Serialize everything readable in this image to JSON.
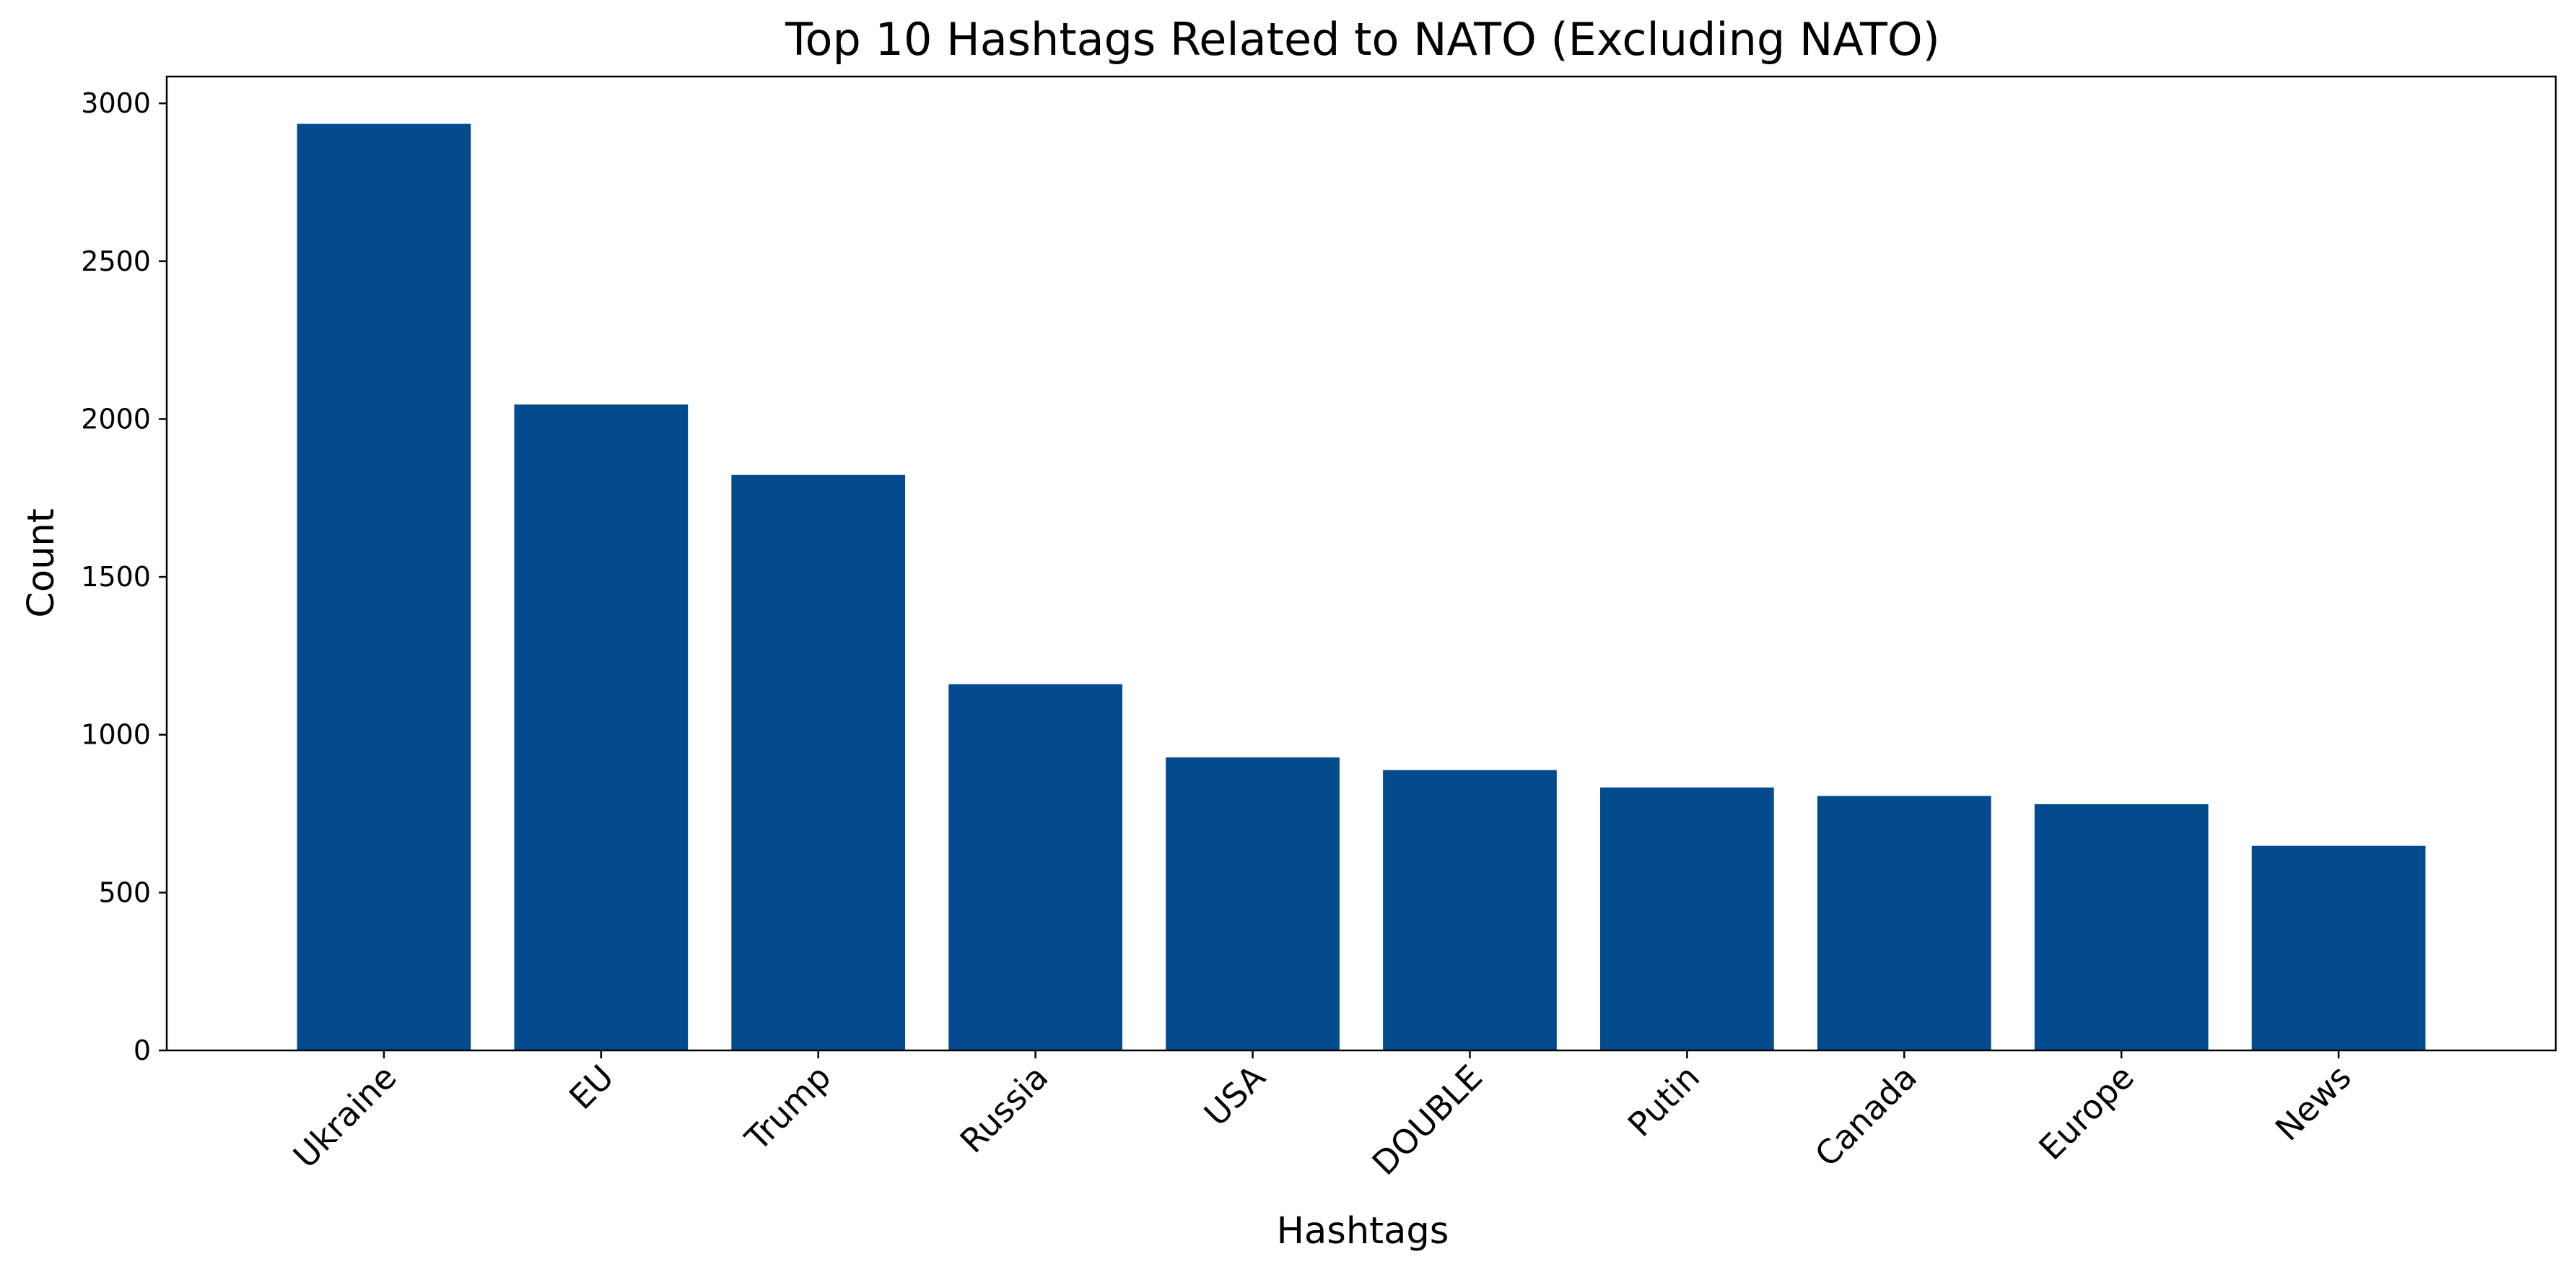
{
  "chart_data": {
    "type": "bar",
    "title": "Top 10 Hashtags Related to NATO (Excluding NATO)",
    "xlabel": "Hashtags",
    "ylabel": "Count",
    "categories": [
      "Ukraine",
      "EU",
      "Trump",
      "Russia",
      "USA",
      "DOUBLE",
      "Putin",
      "Canada",
      "Europe",
      "News"
    ],
    "values": [
      2935,
      2046,
      1823,
      1160,
      928,
      888,
      833,
      806,
      780,
      648
    ],
    "ylim": [
      0,
      3085
    ],
    "yticks": [
      0,
      500,
      1000,
      1500,
      2000,
      2500,
      3000
    ],
    "bar_color": "#034a8f",
    "grid": false,
    "legend": "none"
  }
}
